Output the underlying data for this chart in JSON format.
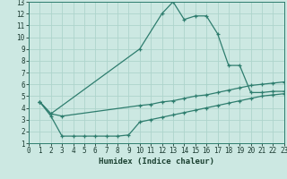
{
  "line1_x": [
    1,
    2,
    10,
    12,
    13,
    14,
    15,
    16,
    17,
    18,
    19,
    20,
    21,
    22,
    23
  ],
  "line1_y": [
    4.5,
    3.5,
    9.0,
    12.0,
    13.0,
    11.5,
    11.8,
    11.8,
    10.3,
    7.6,
    7.6,
    5.3,
    5.3,
    5.4,
    5.4
  ],
  "line2_x": [
    1,
    2,
    3,
    10,
    11,
    12,
    13,
    14,
    15,
    16,
    17,
    18,
    19,
    20,
    21,
    22,
    23
  ],
  "line2_y": [
    4.5,
    3.5,
    3.3,
    4.2,
    4.3,
    4.5,
    4.6,
    4.8,
    5.0,
    5.1,
    5.3,
    5.5,
    5.7,
    5.9,
    6.0,
    6.1,
    6.2
  ],
  "line3_x": [
    1,
    2,
    3,
    4,
    5,
    6,
    7,
    8,
    9,
    10,
    11,
    12,
    13,
    14,
    15,
    16,
    17,
    18,
    19,
    20,
    21,
    22,
    23
  ],
  "line3_y": [
    4.5,
    3.3,
    1.6,
    1.6,
    1.6,
    1.6,
    1.6,
    1.6,
    1.7,
    2.8,
    3.0,
    3.2,
    3.4,
    3.6,
    3.8,
    4.0,
    4.2,
    4.4,
    4.6,
    4.8,
    5.0,
    5.1,
    5.2
  ],
  "line_color": "#2e7d6e",
  "bg_color": "#cce8e2",
  "grid_color": "#aed4cc",
  "xlabel": "Humidex (Indice chaleur)",
  "xlim": [
    0,
    23
  ],
  "ylim": [
    1,
    13
  ],
  "xticks": [
    0,
    1,
    2,
    3,
    4,
    5,
    6,
    7,
    8,
    9,
    10,
    11,
    12,
    13,
    14,
    15,
    16,
    17,
    18,
    19,
    20,
    21,
    22,
    23
  ],
  "yticks": [
    1,
    2,
    3,
    4,
    5,
    6,
    7,
    8,
    9,
    10,
    11,
    12,
    13
  ],
  "marker": "+",
  "marker_size": 3,
  "line_width": 0.9
}
